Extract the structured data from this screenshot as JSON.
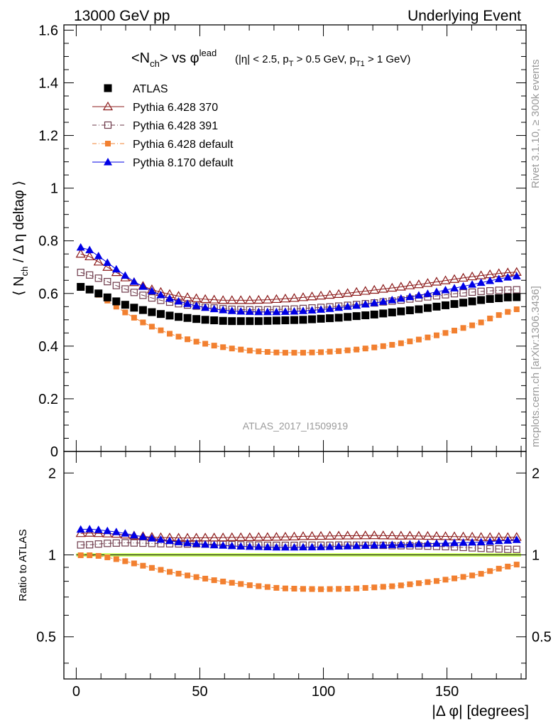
{
  "header": {
    "left": "13000 GeV pp",
    "right": "Underlying Event"
  },
  "title": {
    "main": "<N_ch> vs φ^lead",
    "cuts": "(|η| < 2.5, p_T > 0.5 GeV, p_T1 > 1 GeV)"
  },
  "side_labels": {
    "rivet": "Rivet 3.1.10, ≥ 300k events",
    "source": "mcplots.cern.ch [arXiv:1306.3436]"
  },
  "watermark": "ATLAS_2017_I1509919",
  "chart_data": [
    {
      "type": "scatter",
      "panel": "main",
      "ylabel": "⟨ N_ch / Δη deltaφ ⟩",
      "xlim": [
        -5,
        182
      ],
      "ylim": [
        0,
        1.62
      ],
      "yticks": [
        0,
        0.2,
        0.4,
        0.6,
        0.8,
        1,
        1.2,
        1.4,
        1.6
      ],
      "ytick_labels": [
        "0",
        "0.2",
        "0.4",
        "0.6",
        "0.8",
        "1",
        "1.2",
        "1.4",
        "1.6"
      ],
      "legend_position": "top-left",
      "x": [
        1.8,
        5.4,
        9.0,
        12.6,
        16.2,
        19.8,
        23.4,
        27.0,
        30.6,
        34.2,
        37.8,
        41.4,
        45.0,
        48.6,
        52.2,
        55.8,
        59.4,
        63.0,
        66.6,
        70.2,
        73.8,
        77.4,
        81.0,
        84.6,
        88.2,
        91.8,
        95.4,
        99.0,
        102.6,
        106.2,
        109.8,
        113.4,
        117.0,
        120.6,
        124.2,
        127.8,
        131.4,
        135.0,
        138.6,
        142.2,
        145.8,
        149.4,
        153.0,
        156.6,
        160.2,
        163.8,
        167.4,
        171.0,
        174.6,
        178.2
      ],
      "series": [
        {
          "name": "ATLAS",
          "color": "#000000",
          "marker": "filled-square",
          "values": [
            0.625,
            0.615,
            0.6,
            0.585,
            0.57,
            0.557,
            0.546,
            0.537,
            0.529,
            0.522,
            0.516,
            0.511,
            0.507,
            0.503,
            0.5,
            0.498,
            0.496,
            0.495,
            0.495,
            0.495,
            0.495,
            0.496,
            0.497,
            0.498,
            0.499,
            0.5,
            0.502,
            0.504,
            0.506,
            0.508,
            0.511,
            0.514,
            0.517,
            0.52,
            0.524,
            0.528,
            0.532,
            0.536,
            0.54,
            0.545,
            0.55,
            0.555,
            0.56,
            0.565,
            0.57,
            0.575,
            0.579,
            0.582,
            0.585,
            0.586
          ]
        },
        {
          "name": "Pythia 6.428 370",
          "color": "#8b1a1a",
          "marker": "open-triangle",
          "line": "solid",
          "values": [
            0.75,
            0.74,
            0.72,
            0.7,
            0.68,
            0.66,
            0.642,
            0.628,
            0.615,
            0.605,
            0.597,
            0.59,
            0.585,
            0.581,
            0.578,
            0.576,
            0.574,
            0.574,
            0.574,
            0.574,
            0.575,
            0.576,
            0.578,
            0.58,
            0.582,
            0.585,
            0.588,
            0.591,
            0.594,
            0.597,
            0.601,
            0.605,
            0.609,
            0.613,
            0.617,
            0.621,
            0.625,
            0.63,
            0.634,
            0.639,
            0.644,
            0.649,
            0.654,
            0.659,
            0.664,
            0.668,
            0.672,
            0.676,
            0.679,
            0.681
          ]
        },
        {
          "name": "Pythia 6.428 391",
          "color": "#6e3a4a",
          "marker": "open-square",
          "line": "dash-dot",
          "values": [
            0.68,
            0.67,
            0.658,
            0.645,
            0.63,
            0.617,
            0.604,
            0.593,
            0.583,
            0.574,
            0.567,
            0.561,
            0.556,
            0.552,
            0.548,
            0.545,
            0.542,
            0.54,
            0.539,
            0.538,
            0.538,
            0.538,
            0.539,
            0.54,
            0.541,
            0.543,
            0.545,
            0.547,
            0.549,
            0.552,
            0.555,
            0.558,
            0.561,
            0.564,
            0.568,
            0.571,
            0.575,
            0.579,
            0.583,
            0.587,
            0.591,
            0.595,
            0.599,
            0.602,
            0.605,
            0.608,
            0.61,
            0.612,
            0.613,
            0.614
          ]
        },
        {
          "name": "Pythia 6.428 default",
          "color": "#f28030",
          "marker": "filled-square-small",
          "line": "dash-dot",
          "values": [
            0.623,
            0.613,
            0.595,
            0.573,
            0.55,
            0.528,
            0.508,
            0.49,
            0.474,
            0.46,
            0.447,
            0.436,
            0.426,
            0.417,
            0.409,
            0.402,
            0.396,
            0.391,
            0.387,
            0.383,
            0.38,
            0.378,
            0.376,
            0.375,
            0.375,
            0.375,
            0.376,
            0.377,
            0.379,
            0.381,
            0.384,
            0.387,
            0.391,
            0.395,
            0.4,
            0.405,
            0.411,
            0.418,
            0.425,
            0.433,
            0.441,
            0.45,
            0.459,
            0.469,
            0.479,
            0.49,
            0.505,
            0.518,
            0.53,
            0.54
          ]
        },
        {
          "name": "Pythia 8.170 default",
          "color": "#0000e6",
          "marker": "filled-triangle",
          "line": "solid",
          "values": [
            0.775,
            0.765,
            0.742,
            0.717,
            0.692,
            0.668,
            0.645,
            0.626,
            0.609,
            0.594,
            0.581,
            0.57,
            0.561,
            0.553,
            0.546,
            0.541,
            0.537,
            0.534,
            0.532,
            0.531,
            0.53,
            0.53,
            0.53,
            0.531,
            0.532,
            0.534,
            0.536,
            0.539,
            0.542,
            0.546,
            0.55,
            0.554,
            0.559,
            0.564,
            0.569,
            0.575,
            0.581,
            0.587,
            0.593,
            0.599,
            0.606,
            0.613,
            0.62,
            0.627,
            0.634,
            0.641,
            0.648,
            0.655,
            0.661,
            0.666
          ]
        }
      ]
    },
    {
      "type": "scatter",
      "panel": "ratio",
      "xlabel": "|Δ φ| [degrees]",
      "ylabel": "Ratio to ATLAS",
      "xlim": [
        -5,
        182
      ],
      "ylim": [
        0.35,
        2.4
      ],
      "y_scale": "log",
      "yticks": [
        0.5,
        1,
        2
      ],
      "ytick_labels": [
        "0.5",
        "1",
        "2"
      ],
      "xticks": [
        0,
        50,
        100,
        150
      ],
      "xtick_labels": [
        "0",
        "50",
        "100",
        "150"
      ],
      "reference_band": {
        "color": "#ccff66",
        "low": 0.985,
        "high": 1.015
      }
    }
  ],
  "colors": {
    "frame": "#000000",
    "band": "#ccff66",
    "watermark": "#9a9a9a"
  }
}
